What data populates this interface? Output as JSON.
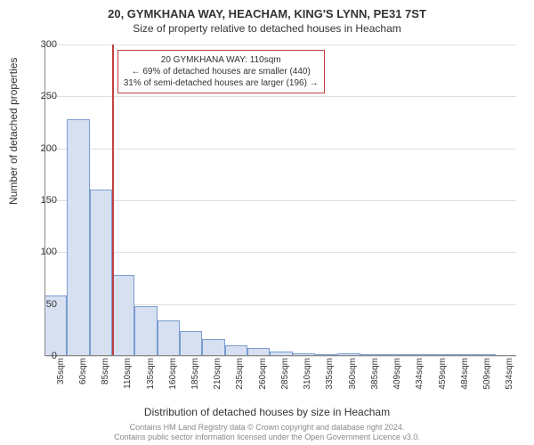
{
  "header": {
    "title": "20, GYMKHANA WAY, HEACHAM, KING'S LYNN, PE31 7ST",
    "subtitle": "Size of property relative to detached houses in Heacham"
  },
  "ylabel": "Number of detached properties",
  "xlabel": "Distribution of detached houses by size in Heacham",
  "footer": {
    "line1": "Contains HM Land Registry data © Crown copyright and database right 2024.",
    "line2": "Contains public sector information licensed under the Open Government Licence v3.0."
  },
  "annotation": {
    "line1": "20 GYMKHANA WAY: 110sqm",
    "line2": "← 69% of detached houses are smaller (440)",
    "line3": "31% of semi-detached houses are larger (196) →"
  },
  "chart": {
    "type": "bar",
    "bar_fill": "#d6e0f0",
    "bar_border": "#7a9bd1",
    "grid_color": "#dddddd",
    "background_color": "#ffffff",
    "marker_color": "#c04040",
    "marker_x_index": 3,
    "ylim_max": 300,
    "yticks": [
      0,
      50,
      100,
      150,
      200,
      250,
      300
    ],
    "categories": [
      "35sqm",
      "60sqm",
      "85sqm",
      "110sqm",
      "135sqm",
      "160sqm",
      "185sqm",
      "210sqm",
      "235sqm",
      "260sqm",
      "285sqm",
      "310sqm",
      "335sqm",
      "360sqm",
      "385sqm",
      "409sqm",
      "434sqm",
      "459sqm",
      "484sqm",
      "509sqm",
      "534sqm"
    ],
    "values": [
      58,
      228,
      160,
      78,
      48,
      34,
      24,
      16,
      10,
      8,
      4,
      3,
      2,
      3,
      2,
      1,
      1,
      1,
      2,
      1,
      0
    ],
    "title_fontsize": 13,
    "label_fontsize": 12,
    "tick_fontsize": 10
  }
}
